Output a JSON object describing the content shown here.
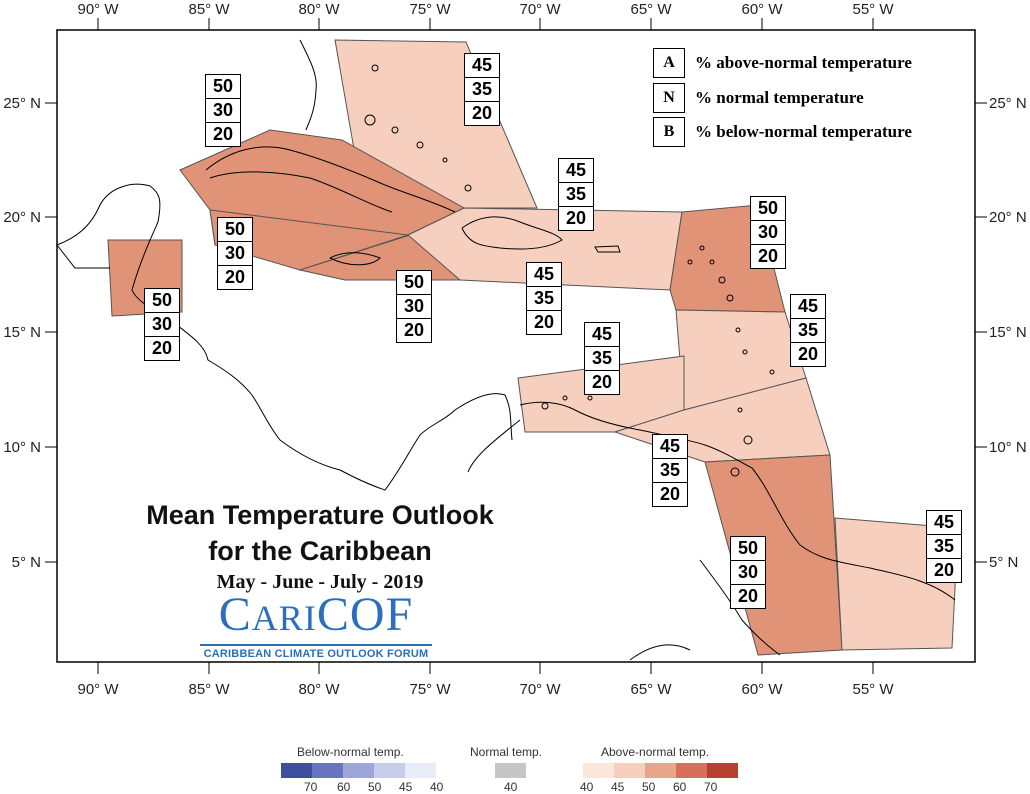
{
  "map": {
    "title_line1": "Mean Temperature Outlook",
    "title_line2": "for the Caribbean",
    "period": "May - June - July - 2019",
    "logo": {
      "word": "CariCOF",
      "subtitle": "CARIBBEAN CLIMATE OUTLOOK FORUM",
      "color": "#2a6fbe"
    },
    "lon_labels": [
      "90° W",
      "85° W",
      "80° W",
      "75° W",
      "70° W",
      "65° W",
      "60° W",
      "55° W"
    ],
    "lat_labels": [
      "25° N",
      "20° N",
      "15° N",
      "10° N",
      "5° N"
    ],
    "key": [
      {
        "letter": "A",
        "text": "% above-normal temperature"
      },
      {
        "letter": "N",
        "text": "% normal temperature"
      },
      {
        "letter": "B",
        "text": "% below-normal temperature"
      }
    ],
    "region_colors": {
      "A50": "#e09377",
      "A45": "#f7cfbf"
    },
    "tercile_boxes": [
      {
        "name": "cuba",
        "values": [
          "50",
          "30",
          "20"
        ]
      },
      {
        "name": "bahamas",
        "values": [
          "45",
          "35",
          "20"
        ]
      },
      {
        "name": "hispaniola",
        "values": [
          "45",
          "35",
          "20"
        ]
      },
      {
        "name": "leeward-islands",
        "values": [
          "50",
          "30",
          "20"
        ]
      },
      {
        "name": "western-caribbean",
        "values": [
          "50",
          "30",
          "20"
        ]
      },
      {
        "name": "jamaica",
        "values": [
          "50",
          "30",
          "20"
        ]
      },
      {
        "name": "belize",
        "values": [
          "50",
          "30",
          "20"
        ]
      },
      {
        "name": "puerto-rico",
        "values": [
          "45",
          "35",
          "20"
        ]
      },
      {
        "name": "windward-islands",
        "values": [
          "45",
          "35",
          "20"
        ]
      },
      {
        "name": "abc-islands",
        "values": [
          "45",
          "35",
          "20"
        ]
      },
      {
        "name": "trinidad",
        "values": [
          "45",
          "35",
          "20"
        ]
      },
      {
        "name": "guyana",
        "values": [
          "50",
          "30",
          "20"
        ]
      },
      {
        "name": "french-guiana",
        "values": [
          "45",
          "35",
          "20"
        ]
      }
    ]
  },
  "colorbar": {
    "below": {
      "label": "Below-normal temp.",
      "ticks": [
        "70",
        "60",
        "50",
        "45",
        "40"
      ],
      "colors": [
        "#3d4f9e",
        "#6874c0",
        "#9ea5d8",
        "#c9cdec",
        "#e8ebf8"
      ]
    },
    "normal": {
      "label": "Normal temp.",
      "ticks": [
        "40"
      ],
      "colors": [
        "#c6c6c6"
      ]
    },
    "above": {
      "label": "Above-normal temp.",
      "ticks": [
        "40",
        "45",
        "50",
        "60",
        "70"
      ],
      "colors": [
        "#fbe6dc",
        "#f7cfbf",
        "#e9a48c",
        "#d6705a",
        "#b8402e"
      ]
    }
  }
}
